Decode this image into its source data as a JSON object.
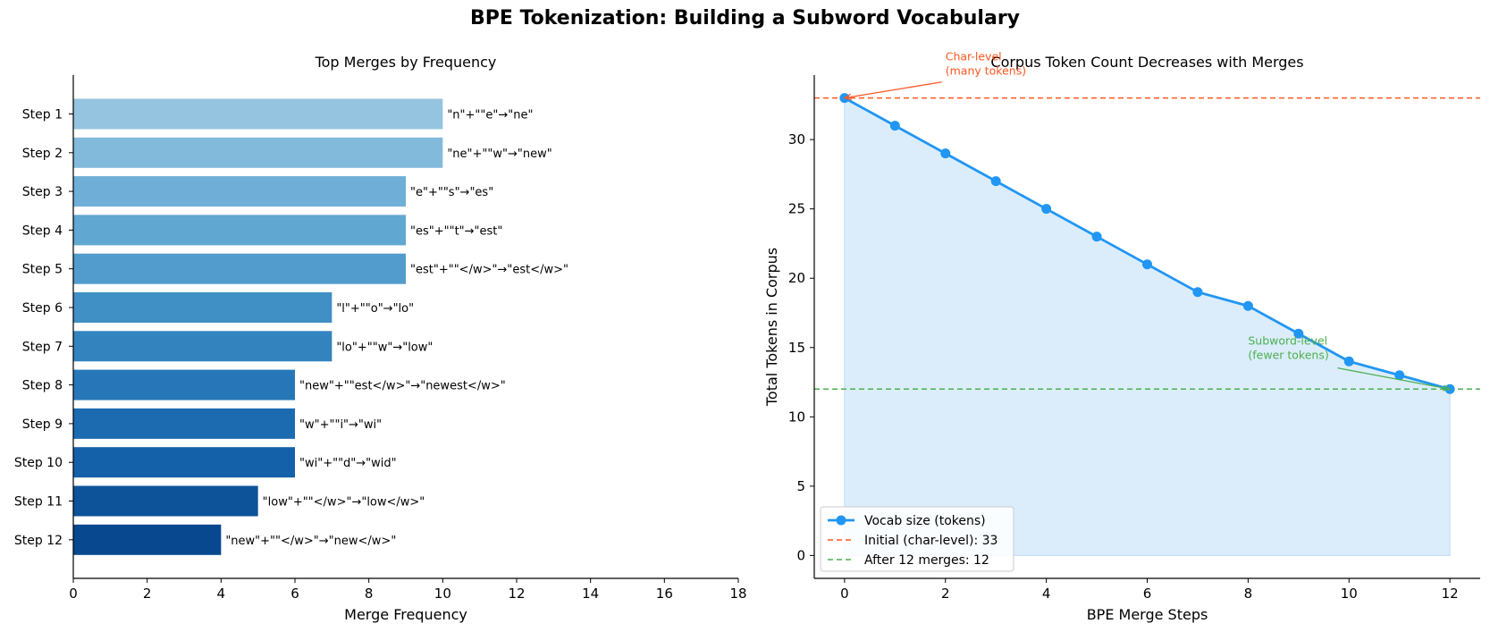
{
  "figure": {
    "title": "BPE Tokenization: Building a Subword Vocabulary"
  },
  "chart_data": [
    {
      "type": "bar",
      "orientation": "horizontal",
      "title": "Top Merges by Frequency",
      "xlabel": "Merge Frequency",
      "ylabel": "",
      "xlim": [
        0,
        18
      ],
      "xticks": [
        "0",
        "2",
        "4",
        "6",
        "8",
        "10",
        "12",
        "14",
        "16",
        "18"
      ],
      "categories": [
        "Step 1",
        "Step 2",
        "Step 3",
        "Step 4",
        "Step 5",
        "Step 6",
        "Step 7",
        "Step 8",
        "Step 9",
        "Step 10",
        "Step 11",
        "Step 12"
      ],
      "values": [
        10,
        10,
        9,
        9,
        9,
        7,
        7,
        6,
        6,
        6,
        5,
        4
      ],
      "bar_labels": [
        "\"n\"+\"\"e\"→\"ne\"",
        "\"ne\"+\"\"w\"→\"new\"",
        "\"e\"+\"\"s\"→\"es\"",
        "\"es\"+\"\"t\"→\"est\"",
        "\"est\"+\"\"</w>\"→\"est</w>\"",
        "\"l\"+\"\"o\"→\"lo\"",
        "\"lo\"+\"\"w\"→\"low\"",
        "\"new\"+\"\"est</w>\"→\"newest</w>\"",
        "\"w\"+\"\"i\"→\"wi\"",
        "\"wi\"+\"\"d\"→\"wid\"",
        "\"low\"+\"\"</w>\"→\"low</w>\"",
        "\"new\"+\"\"</w>\"→\"new</w>\""
      ],
      "colors": [
        "#94c4df",
        "#82badb",
        "#6fafd7",
        "#60a7d2",
        "#519ccc",
        "#4090c5",
        "#3383be",
        "#2777b8",
        "#1c6bb0",
        "#1561a9",
        "#0d539a",
        "#08488e"
      ],
      "grid": false
    },
    {
      "type": "line",
      "title": "Corpus Token Count Decreases with Merges",
      "xlabel": "BPE Merge Steps",
      "ylabel": "Total Tokens in Corpus",
      "xlim": [
        -0.6,
        12.6
      ],
      "ylim": [
        -1.65,
        34.65
      ],
      "xticks": [
        "0",
        "2",
        "4",
        "6",
        "8",
        "10",
        "12"
      ],
      "yticks": [
        "0",
        "5",
        "10",
        "15",
        "20",
        "25",
        "30"
      ],
      "series": [
        {
          "name": "Vocab size (tokens)",
          "x": [
            0,
            1,
            2,
            3,
            4,
            5,
            6,
            7,
            8,
            9,
            10,
            11,
            12
          ],
          "values": [
            33,
            31,
            29,
            27,
            25,
            23,
            21,
            19,
            18,
            16,
            14,
            13,
            12
          ],
          "color": "#2196f3",
          "fill": "#dbedfb"
        }
      ],
      "reference_lines": [
        {
          "name": "Initial (char-level): 33",
          "y": 33,
          "color": "#ff5722",
          "style": "dashed"
        },
        {
          "name": "After 12 merges: 12",
          "y": 12,
          "color": "#4caf50",
          "style": "dashed"
        }
      ],
      "annotations": [
        {
          "lines": [
            "Char-level",
            "(many tokens)"
          ],
          "target_x": 0,
          "target_y": 33,
          "text_x": 2,
          "text_y": 35.7,
          "color": "#ff5722"
        },
        {
          "lines": [
            "Subword-level",
            "(fewer tokens)"
          ],
          "target_x": 12,
          "target_y": 12,
          "text_x": 8,
          "text_y": 15.2,
          "color": "#4caf50"
        }
      ],
      "legend_position": "lower-left",
      "grid": false
    }
  ]
}
